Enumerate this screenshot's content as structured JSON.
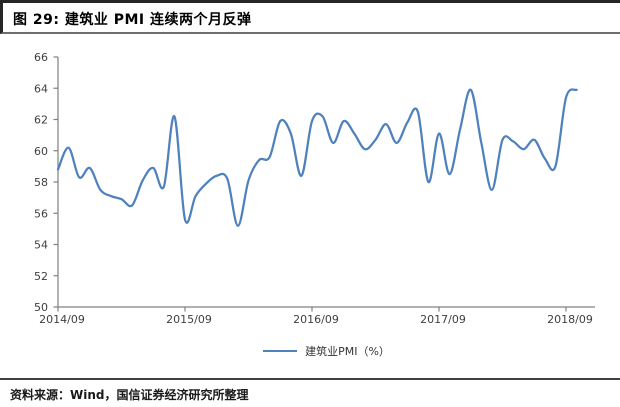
{
  "header": {
    "title": "图 29:  建筑业 PMI 连续两个月反弹"
  },
  "legend": {
    "label": "建筑业PMI（%）"
  },
  "footer": {
    "source": "资料来源：Wind，国信证券经济研究所整理"
  },
  "colors": {
    "line": "#4F81BD",
    "axis": "#808080",
    "tick_label": "#404040",
    "title_text": "#000000"
  },
  "chart_data": {
    "type": "line",
    "title": "建筑业 PMI 连续两个月反弹",
    "series_name": "建筑业PMI（%）",
    "ylabel": "",
    "xlabel": "",
    "ylim": [
      50,
      66
    ],
    "y_ticks": [
      50,
      52,
      54,
      56,
      58,
      60,
      62,
      64,
      66
    ],
    "x_tick_labels": [
      "2014/09",
      "2015/09",
      "2016/09",
      "2017/09",
      "2018/09"
    ],
    "grid": false,
    "legend_position": "bottom-center",
    "months": [
      "2014/09",
      "2014/10",
      "2014/11",
      "2014/12",
      "2015/01",
      "2015/02",
      "2015/03",
      "2015/04",
      "2015/05",
      "2015/06",
      "2015/07",
      "2015/08",
      "2015/09",
      "2015/10",
      "2015/11",
      "2015/12",
      "2016/01",
      "2016/02",
      "2016/03",
      "2016/04",
      "2016/05",
      "2016/06",
      "2016/07",
      "2016/08",
      "2016/09",
      "2016/10",
      "2016/11",
      "2016/12",
      "2017/01",
      "2017/02",
      "2017/03",
      "2017/04",
      "2017/05",
      "2017/06",
      "2017/07",
      "2017/08",
      "2017/09",
      "2017/10",
      "2017/11",
      "2017/12",
      "2018/01",
      "2018/02",
      "2018/03",
      "2018/04",
      "2018/05",
      "2018/06",
      "2018/07",
      "2018/08",
      "2018/09",
      "2018/10"
    ],
    "values": [
      58.8,
      60.2,
      58.3,
      58.9,
      57.5,
      57.1,
      56.9,
      56.5,
      58.1,
      58.9,
      57.7,
      62.2,
      55.6,
      57.1,
      57.9,
      58.4,
      58.2,
      55.2,
      58.1,
      59.4,
      59.6,
      61.9,
      61.1,
      58.4,
      61.9,
      62.2,
      60.5,
      61.9,
      61.1,
      60.1,
      60.7,
      61.7,
      60.5,
      61.8,
      62.5,
      58.0,
      61.1,
      58.5,
      61.4,
      63.9,
      60.5,
      57.5,
      60.7,
      60.6,
      60.1,
      60.7,
      59.5,
      59.0,
      63.4,
      63.9
    ]
  }
}
